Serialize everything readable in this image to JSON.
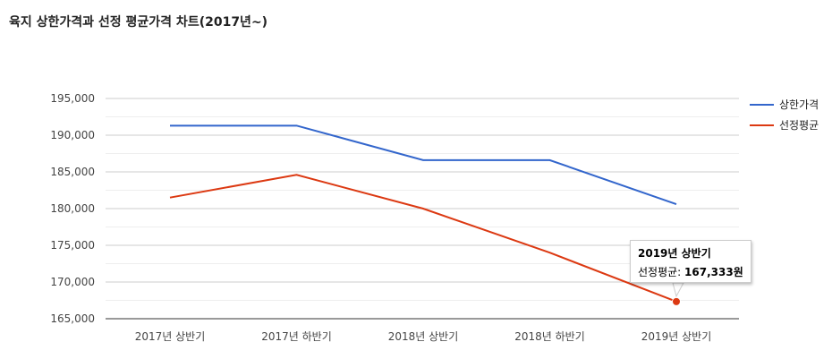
{
  "chart_data": {
    "type": "line",
    "title": "육지 상한가격과 선정 평균가격 차트(2017년~)",
    "categories": [
      "2017년 상반기",
      "2017년 하반기",
      "2018년 상반기",
      "2018년 하반기",
      "2019년 상반기"
    ],
    "series": [
      {
        "name": "상한가격",
        "color": "#3366cc",
        "values": [
          191300,
          191300,
          186600,
          186600,
          180600
        ]
      },
      {
        "name": "선정평균",
        "color": "#dc3912",
        "values": [
          181500,
          184600,
          180000,
          174000,
          167333
        ]
      }
    ],
    "ylim": [
      165000,
      195000
    ],
    "yticks": [
      195000,
      190000,
      185000,
      180000,
      175000,
      170000,
      165000
    ],
    "ytick_labels": [
      "195,000",
      "190,000",
      "185,000",
      "180,000",
      "175,000",
      "170,000",
      "165,000"
    ],
    "grid": true,
    "legend_position": "right",
    "tooltip": {
      "title": "2019년 상반기",
      "series_label": "선정평균:",
      "value_label": "167,333원",
      "series_index": 1,
      "point_index": 4
    }
  }
}
